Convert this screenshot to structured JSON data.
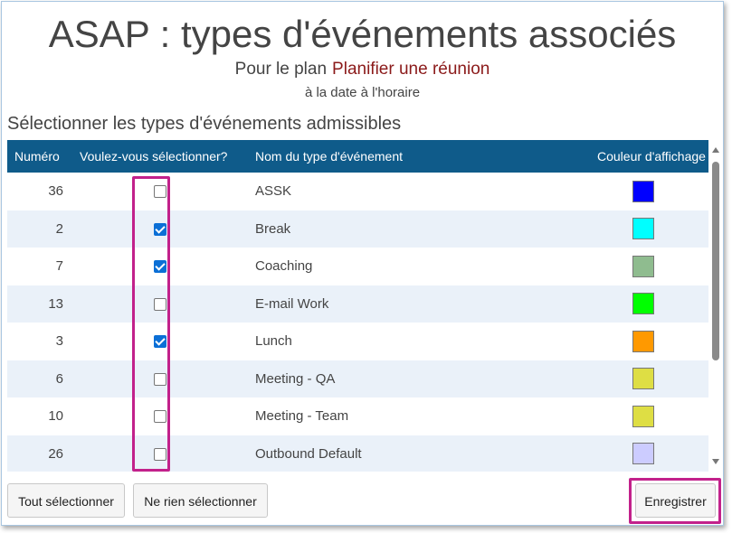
{
  "header": {
    "title": "ASAP : types d'événements associés",
    "plan_prefix": "Pour le plan",
    "plan_name": "Planifier une réunion",
    "date_line": "à la date à l'horaire"
  },
  "section_title": "Sélectionner les types d'événements admissibles",
  "table": {
    "columns": {
      "number": "Numéro",
      "select": "Voulez-vous sélectionner?",
      "name": "Nom du type d'événement",
      "color": "Couleur d'affichage"
    },
    "rows": [
      {
        "number": "36",
        "checked": false,
        "name": "ASSK",
        "color": "#0000ff"
      },
      {
        "number": "2",
        "checked": true,
        "name": "Break",
        "color": "#00ffff"
      },
      {
        "number": "7",
        "checked": true,
        "name": "Coaching",
        "color": "#8fbc8f"
      },
      {
        "number": "13",
        "checked": false,
        "name": "E-mail Work",
        "color": "#00ff00"
      },
      {
        "number": "3",
        "checked": true,
        "name": "Lunch",
        "color": "#ff9900"
      },
      {
        "number": "6",
        "checked": false,
        "name": "Meeting - QA",
        "color": "#dede44"
      },
      {
        "number": "10",
        "checked": false,
        "name": "Meeting - Team",
        "color": "#dede44"
      },
      {
        "number": "26",
        "checked": false,
        "name": "Outbound Default",
        "color": "#ccccff"
      }
    ]
  },
  "buttons": {
    "select_all": "Tout sélectionner",
    "select_none": "Ne rien sélectionner",
    "save": "Enregistrer"
  },
  "colors": {
    "header_bg": "#0f5b8a",
    "plan_name": "#8b1a1a",
    "highlight": "#c2218b",
    "row_alt": "#eaf1f9",
    "checkbox_checked": "#0b6fd6"
  }
}
